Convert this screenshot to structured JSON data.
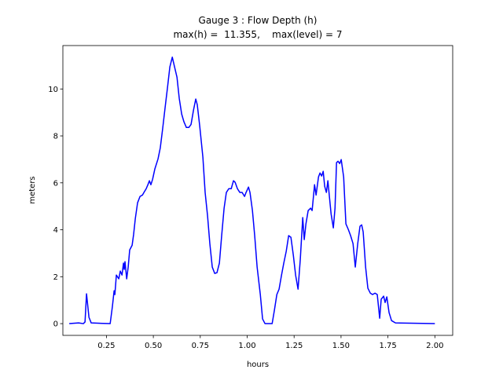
{
  "chart_data": {
    "type": "line",
    "title": "Gauge 3 : Flow Depth (h)",
    "subtitle": "max(h) =  11.355,    max(level) = 7",
    "xlabel": "hours",
    "ylabel": "meters",
    "xlim": [
      0.018,
      2.095
    ],
    "ylim": [
      -0.5,
      11.85
    ],
    "xticks": [
      0.25,
      {
        "value": 0.5,
        "label": "0.50"
      },
      0.75,
      {
        "value": 1,
        "label": "1.00"
      },
      1.25,
      {
        "value": 1.5,
        "label": "1.50"
      },
      1.75,
      {
        "value": 2,
        "label": "2.00"
      }
    ],
    "yticks": [
      0,
      2,
      4,
      6,
      8,
      10
    ],
    "x": [
      0.052,
      0.102,
      0.127,
      0.136,
      0.144,
      0.157,
      0.169,
      0.27,
      0.282,
      0.291,
      0.295,
      0.303,
      0.316,
      0.324,
      0.333,
      0.341,
      0.345,
      0.349,
      0.358,
      0.366,
      0.374,
      0.387,
      0.395,
      0.404,
      0.416,
      0.429,
      0.442,
      0.45,
      0.462,
      0.471,
      0.479,
      0.487,
      0.496,
      0.508,
      0.525,
      0.537,
      0.55,
      0.563,
      0.575,
      0.588,
      0.601,
      0.613,
      0.626,
      0.638,
      0.651,
      0.663,
      0.676,
      0.689,
      0.701,
      0.714,
      0.726,
      0.734,
      0.747,
      0.764,
      0.776,
      0.789,
      0.801,
      0.814,
      0.827,
      0.839,
      0.852,
      0.864,
      0.877,
      0.889,
      0.902,
      0.915,
      0.927,
      0.936,
      0.948,
      0.961,
      0.973,
      0.986,
      0.994,
      1.007,
      1.015,
      1.028,
      1.04,
      1.053,
      1.07,
      1.082,
      1.095,
      1.133,
      1.145,
      1.158,
      1.17,
      1.183,
      1.195,
      1.208,
      1.221,
      1.233,
      1.246,
      1.258,
      1.271,
      1.283,
      1.296,
      1.304,
      1.313,
      1.325,
      1.338,
      1.346,
      1.359,
      1.367,
      1.38,
      1.388,
      1.397,
      1.405,
      1.413,
      1.422,
      1.43,
      1.438,
      1.447,
      1.459,
      1.468,
      1.476,
      1.484,
      1.493,
      1.501,
      1.514,
      1.526,
      1.539,
      1.551,
      1.564,
      1.576,
      1.589,
      1.601,
      1.61,
      1.618,
      1.631,
      1.643,
      1.656,
      1.668,
      1.681,
      1.693,
      1.706,
      1.714,
      1.727,
      1.735,
      1.744,
      1.756,
      1.769,
      1.79,
      2.0
    ],
    "series": [
      {
        "color": "#0000ff",
        "values": [
          0,
          0.03,
          0,
          0.07,
          1.27,
          0.27,
          0.03,
          0,
          0.74,
          1.4,
          1.24,
          2.07,
          1.91,
          2.24,
          2.07,
          2.58,
          2.31,
          2.64,
          1.91,
          2.41,
          3.14,
          3.34,
          3.81,
          4.48,
          5.15,
          5.42,
          5.48,
          5.59,
          5.75,
          5.92,
          6.09,
          5.92,
          6.15,
          6.59,
          7.02,
          7.49,
          8.33,
          9.23,
          10.03,
          10.94,
          11.355,
          10.94,
          10.5,
          9.6,
          8.93,
          8.6,
          8.36,
          8.36,
          8.49,
          9.1,
          9.57,
          9.33,
          8.43,
          7.09,
          5.59,
          4.58,
          3.41,
          2.41,
          2.14,
          2.17,
          2.58,
          3.75,
          4.92,
          5.59,
          5.75,
          5.75,
          6.09,
          6.02,
          5.75,
          5.59,
          5.59,
          5.42,
          5.59,
          5.82,
          5.59,
          4.82,
          3.75,
          2.41,
          1.24,
          0.2,
          0,
          0,
          0.57,
          1.24,
          1.47,
          2.07,
          2.58,
          3.08,
          3.75,
          3.68,
          2.91,
          2.07,
          1.47,
          2.74,
          4.52,
          3.58,
          4.25,
          4.82,
          4.92,
          4.82,
          5.92,
          5.48,
          6.25,
          6.42,
          6.29,
          6.49,
          5.85,
          5.59,
          6.09,
          5.42,
          4.68,
          4.08,
          4.92,
          6.86,
          6.92,
          6.82,
          6.99,
          6.25,
          4.25,
          4.01,
          3.75,
          3.41,
          2.41,
          3.41,
          4.15,
          4.21,
          3.91,
          2.41,
          1.51,
          1.3,
          1.24,
          1.3,
          1.24,
          0.23,
          1.04,
          1.17,
          0.9,
          1.14,
          0.47,
          0.13,
          0.03,
          0
        ]
      }
    ]
  }
}
